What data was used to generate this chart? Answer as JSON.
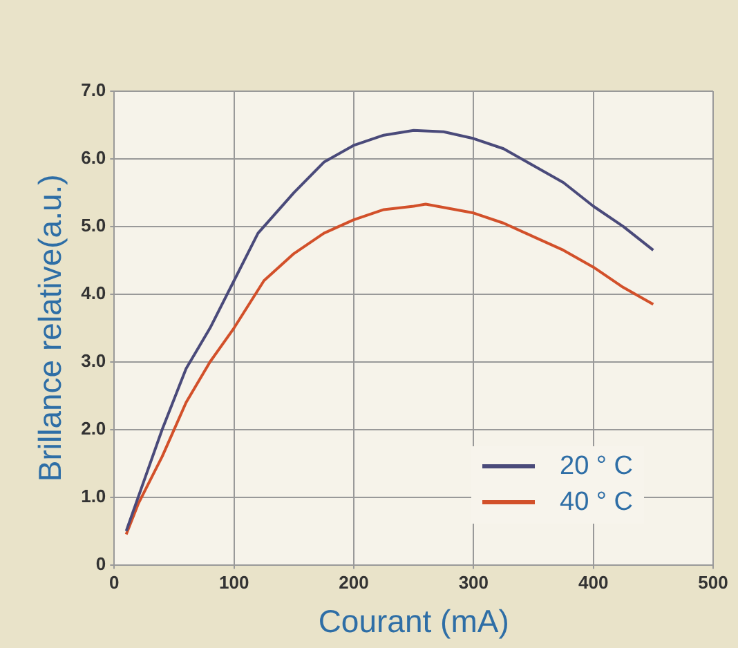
{
  "chart_data": {
    "type": "line",
    "xlabel": "Courant (mA)",
    "ylabel": "Brillance relative(a.u.)",
    "xlim": [
      0,
      500
    ],
    "xticks": [
      0,
      100,
      200,
      300,
      400,
      500
    ],
    "ylim": [
      0,
      7
    ],
    "yticks": [
      0,
      {
        "value": 1,
        "label": "1.0"
      },
      {
        "value": 2,
        "label": "2.0"
      },
      {
        "value": 3,
        "label": "3.0"
      },
      {
        "value": 4,
        "label": "4.0"
      },
      {
        "value": 5,
        "label": "5.0"
      },
      {
        "value": 6,
        "label": "6.0"
      },
      {
        "value": 7,
        "label": "7.0"
      }
    ],
    "grid": true,
    "legend": "bottom right",
    "marker": "none",
    "line_style": "solid",
    "series": [
      {
        "name": "20 ° C",
        "color": "#4a4a7a",
        "x": [
          10,
          20,
          40,
          60,
          80,
          100,
          120,
          150,
          175,
          200,
          225,
          250,
          275,
          300,
          325,
          350,
          375,
          400,
          425,
          450
        ],
        "values": [
          0.5,
          1.0,
          2.0,
          2.9,
          3.5,
          4.2,
          4.9,
          5.5,
          5.95,
          6.2,
          6.35,
          6.42,
          6.4,
          6.3,
          6.15,
          5.9,
          5.65,
          5.3,
          5.0,
          4.65
        ]
      },
      {
        "name": "40 ° C",
        "color": "#d2502a",
        "x": [
          10,
          20,
          40,
          60,
          80,
          100,
          125,
          150,
          175,
          200,
          225,
          250,
          260,
          300,
          325,
          350,
          375,
          400,
          425,
          450
        ],
        "values": [
          0.45,
          0.9,
          1.6,
          2.4,
          3.0,
          3.5,
          4.2,
          4.6,
          4.9,
          5.1,
          5.25,
          5.3,
          5.33,
          5.2,
          5.05,
          4.85,
          4.65,
          4.4,
          4.1,
          3.85
        ]
      }
    ]
  }
}
